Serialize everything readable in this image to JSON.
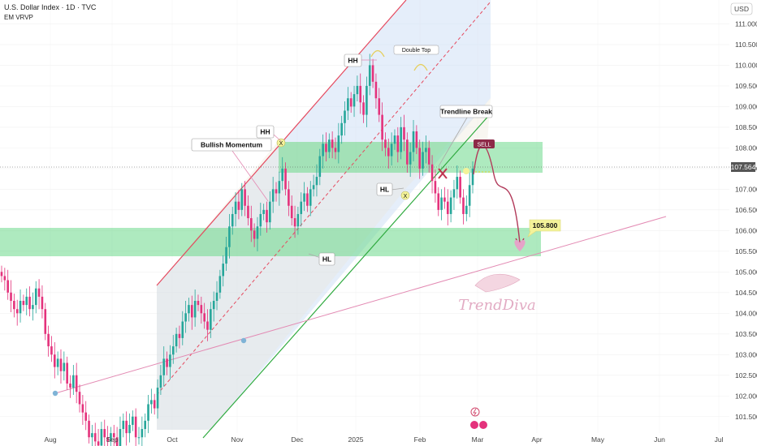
{
  "header": {
    "symbol_line": "U.S. Dollar Index · 1D · TVC",
    "indicator": "EM VRVP",
    "currency": "USD"
  },
  "chart_data": {
    "type": "candlestick",
    "title": "U.S. Dollar Index · 1D · TVC",
    "xlabel": "",
    "ylabel": "",
    "ylim": [
      101.2,
      111.5
    ],
    "y_ticks": [
      101.5,
      102.0,
      102.5,
      103.0,
      103.5,
      104.0,
      104.5,
      105.0,
      105.5,
      106.0,
      106.5,
      107.0,
      107.5,
      108.0,
      108.5,
      109.0,
      109.5,
      110.0,
      110.5,
      111.0
    ],
    "x_ticks": [
      "Aug",
      "Sep",
      "Oct",
      "Nov",
      "Dec",
      "2025",
      "Feb",
      "Mar",
      "Apr",
      "May",
      "Jun",
      "Jul"
    ],
    "current_price": "107.564",
    "grid": true,
    "annotations": {
      "bullish_momentum": "Bullish Momentum",
      "hh_1": "HH",
      "hh_2": "HH",
      "double_top": "Double Top",
      "trendline_break": "Trendline Break",
      "hl_1": "HL",
      "hl_2": "HL",
      "sell": "SELL",
      "target": "105.800",
      "x_mark_1": "X",
      "x_mark_2": "X",
      "watermark": "TrendDiva"
    },
    "zones": [
      {
        "name": "resistance",
        "from": 107.6,
        "to": 108.1
      },
      {
        "name": "support",
        "from": 105.5,
        "to": 106.0
      }
    ],
    "price_path": [
      104.9,
      104.8,
      104.5,
      104.3,
      104.1,
      104.0,
      104.3,
      104.2,
      104.4,
      104.1,
      104.2,
      104.6,
      104.4,
      104.1,
      103.5,
      103.2,
      103.0,
      102.7,
      102.9,
      102.6,
      102.8,
      102.3,
      102.2,
      102.5,
      102.1,
      101.8,
      101.6,
      101.4,
      101.0,
      101.1,
      100.9,
      100.8,
      101.2,
      101.0,
      100.9,
      101.1,
      101.0,
      100.7,
      101.2,
      101.4,
      101.1,
      101.3,
      101.5,
      101.0,
      101.0,
      101.2,
      101.4,
      101.8,
      101.9,
      101.7,
      102.2,
      102.5,
      102.9,
      102.7,
      103.0,
      103.2,
      103.5,
      103.4,
      103.8,
      104.0,
      104.2,
      103.9,
      104.3,
      104.2,
      104.0,
      103.8,
      103.6,
      104.1,
      104.3,
      104.5,
      104.9,
      105.2,
      105.6,
      106.1,
      106.4,
      106.7,
      106.5,
      107.0,
      106.6,
      106.3,
      106.0,
      105.8,
      106.1,
      106.4,
      106.5,
      106.2,
      106.7,
      107.0,
      106.9,
      107.2,
      107.5,
      107.0,
      106.6,
      106.3,
      106.1,
      106.4,
      106.7,
      106.9,
      106.6,
      107.0,
      107.1,
      107.3,
      107.8,
      108.1,
      107.9,
      108.2,
      108.0,
      107.9,
      108.3,
      108.6,
      108.9,
      109.2,
      109.0,
      109.3,
      109.5,
      109.1,
      108.8,
      109.5,
      110.0,
      109.6,
      109.2,
      108.8,
      108.2,
      108.0,
      107.8,
      108.1,
      108.3,
      107.9,
      108.5,
      108.2,
      107.6,
      107.9,
      108.4,
      108.0,
      107.5,
      107.9,
      108.0,
      107.6,
      107.2,
      106.9,
      106.5,
      106.8,
      106.7,
      106.4,
      106.8,
      107.0,
      107.3,
      106.8,
      106.4,
      106.6,
      107.1,
      107.5
    ]
  },
  "colors": {
    "up": "#26a69a",
    "down": "#e4327c",
    "zone": "#6bd98a",
    "channel_fill": "#cfe0f5",
    "upper_line": "#e54a5f",
    "lower_line": "#2faa3f",
    "trend_support": "#e38ab3"
  }
}
